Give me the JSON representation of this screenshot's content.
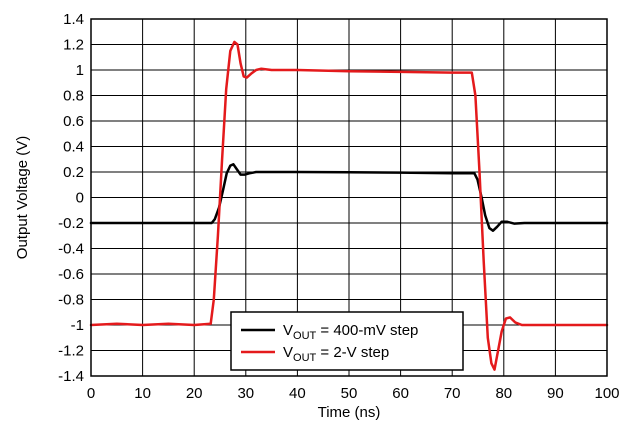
{
  "chart_data": {
    "type": "line",
    "title": "",
    "xlabel": "Time (ns)",
    "ylabel": "Output Voltage (V)",
    "xlim": [
      0,
      100
    ],
    "ylim": [
      -1.4,
      1.4
    ],
    "xticks": [
      0,
      10,
      20,
      30,
      40,
      50,
      60,
      70,
      80,
      90,
      100
    ],
    "yticks": [
      1.4,
      1.2,
      1,
      0.8,
      0.6,
      0.4,
      0.2,
      0,
      -0.2,
      -0.4,
      -0.6,
      -0.8,
      -1,
      -1.2,
      -1.4
    ],
    "grid": true,
    "legend_position": "bottom-center",
    "series": [
      {
        "name_main": "V",
        "name_sub": "OUT",
        "name_rest": " = 400-mV step",
        "color": "#000000",
        "points": [
          [
            0,
            -0.2
          ],
          [
            23.4,
            -0.2
          ],
          [
            24.0,
            -0.17
          ],
          [
            24.8,
            -0.08
          ],
          [
            25.6,
            0.06
          ],
          [
            26.3,
            0.19
          ],
          [
            27.0,
            0.25
          ],
          [
            27.6,
            0.26
          ],
          [
            28.3,
            0.22
          ],
          [
            29.0,
            0.18
          ],
          [
            29.8,
            0.18
          ],
          [
            30.7,
            0.19
          ],
          [
            32.0,
            0.2
          ],
          [
            34.0,
            0.2
          ],
          [
            40,
            0.2
          ],
          [
            50,
            0.198
          ],
          [
            60,
            0.195
          ],
          [
            70,
            0.19
          ],
          [
            74.3,
            0.19
          ],
          [
            74.9,
            0.14
          ],
          [
            75.7,
            0.0
          ],
          [
            76.4,
            -0.14
          ],
          [
            77.2,
            -0.24
          ],
          [
            77.9,
            -0.26
          ],
          [
            78.7,
            -0.23
          ],
          [
            79.6,
            -0.19
          ],
          [
            80.6,
            -0.19
          ],
          [
            82.0,
            -0.205
          ],
          [
            84,
            -0.2
          ],
          [
            100,
            -0.2
          ]
        ]
      },
      {
        "name_main": "V",
        "name_sub": "OUT",
        "name_rest": " = 2-V step",
        "color": "#e41a1c",
        "points": [
          [
            0,
            -1.0
          ],
          [
            5,
            -0.99
          ],
          [
            10,
            -1.0
          ],
          [
            15,
            -0.99
          ],
          [
            20,
            -1.0
          ],
          [
            23.2,
            -0.99
          ],
          [
            23.8,
            -0.8
          ],
          [
            24.6,
            -0.3
          ],
          [
            25.4,
            0.3
          ],
          [
            26.2,
            0.85
          ],
          [
            27.0,
            1.15
          ],
          [
            27.8,
            1.22
          ],
          [
            28.4,
            1.2
          ],
          [
            29.0,
            1.05
          ],
          [
            29.6,
            0.95
          ],
          [
            30.2,
            0.94
          ],
          [
            31.0,
            0.97
          ],
          [
            32.0,
            1.0
          ],
          [
            33.0,
            1.01
          ],
          [
            35,
            1.0
          ],
          [
            40,
            1.0
          ],
          [
            50,
            0.99
          ],
          [
            60,
            0.985
          ],
          [
            70,
            0.98
          ],
          [
            73.8,
            0.98
          ],
          [
            74.5,
            0.8
          ],
          [
            75.3,
            0.2
          ],
          [
            76.1,
            -0.5
          ],
          [
            76.9,
            -1.1
          ],
          [
            77.6,
            -1.3
          ],
          [
            78.2,
            -1.35
          ],
          [
            78.9,
            -1.2
          ],
          [
            79.6,
            -1.05
          ],
          [
            80.4,
            -0.95
          ],
          [
            81.2,
            -0.94
          ],
          [
            82.2,
            -0.98
          ],
          [
            83.5,
            -1.0
          ],
          [
            88,
            -1.0
          ],
          [
            95,
            -1.0
          ],
          [
            100,
            -1.0
          ]
        ]
      }
    ]
  }
}
